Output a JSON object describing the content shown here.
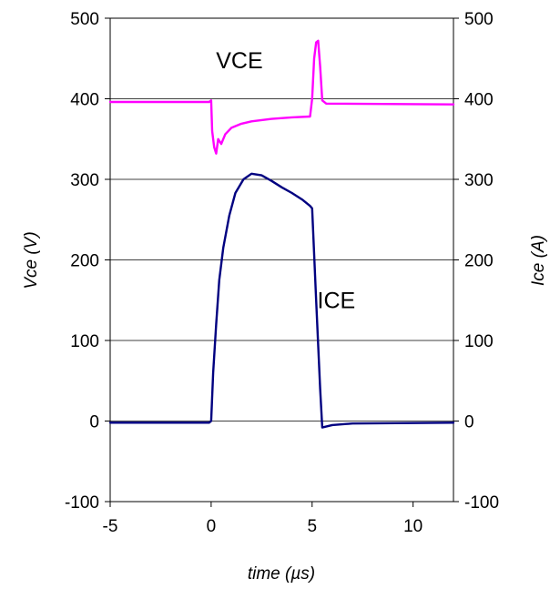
{
  "chart_data": {
    "type": "line",
    "xlabel": "time (µs)",
    "ylabel": "Vce (V)",
    "y2label": "Ice (A)",
    "xlim": [
      -5,
      12
    ],
    "ylim": [
      -100,
      500
    ],
    "y2lim": [
      -100,
      500
    ],
    "x_ticks": [
      -5,
      0,
      5,
      10
    ],
    "y_ticks": [
      -100,
      0,
      100,
      200,
      300,
      400,
      500
    ],
    "y2_ticks": [
      -100,
      0,
      100,
      200,
      300,
      400,
      500
    ],
    "grid": "horizontal",
    "series": [
      {
        "name": "VCE",
        "color": "#ff00ff",
        "points": [
          [
            -5,
            396
          ],
          [
            -0.1,
            396
          ],
          [
            0,
            398
          ],
          [
            0.05,
            360
          ],
          [
            0.15,
            340
          ],
          [
            0.25,
            332
          ],
          [
            0.35,
            350
          ],
          [
            0.5,
            344
          ],
          [
            0.7,
            356
          ],
          [
            1.0,
            364
          ],
          [
            1.5,
            369
          ],
          [
            2.0,
            372
          ],
          [
            3.0,
            375
          ],
          [
            4.0,
            377
          ],
          [
            4.9,
            378
          ],
          [
            5.0,
            400
          ],
          [
            5.1,
            450
          ],
          [
            5.2,
            470
          ],
          [
            5.3,
            472
          ],
          [
            5.4,
            440
          ],
          [
            5.5,
            398
          ],
          [
            5.7,
            394
          ],
          [
            12,
            393
          ]
        ]
      },
      {
        "name": "ICE",
        "color": "#000080",
        "points": [
          [
            -5,
            -2
          ],
          [
            -0.1,
            -2
          ],
          [
            0,
            0
          ],
          [
            0.1,
            60
          ],
          [
            0.25,
            120
          ],
          [
            0.4,
            175
          ],
          [
            0.6,
            215
          ],
          [
            0.9,
            255
          ],
          [
            1.2,
            283
          ],
          [
            1.6,
            300
          ],
          [
            2.0,
            307
          ],
          [
            2.5,
            305
          ],
          [
            3.0,
            298
          ],
          [
            3.5,
            290
          ],
          [
            4.0,
            283
          ],
          [
            4.5,
            275
          ],
          [
            4.9,
            267
          ],
          [
            5.0,
            264
          ],
          [
            5.2,
            150
          ],
          [
            5.4,
            40
          ],
          [
            5.5,
            -8
          ],
          [
            6.0,
            -5
          ],
          [
            7,
            -3
          ],
          [
            12,
            -2
          ]
        ]
      }
    ],
    "annotations": [
      {
        "text": "VCE",
        "x": 1.4,
        "y": 438
      },
      {
        "text": "ICE",
        "x": 6.2,
        "y": 140
      }
    ]
  }
}
